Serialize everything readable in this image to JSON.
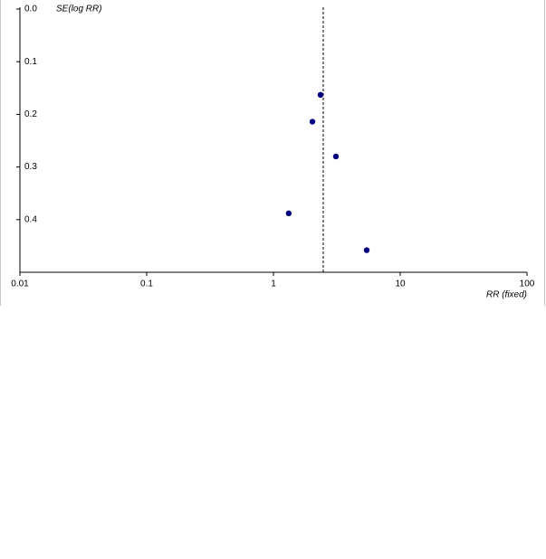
{
  "chart_data": {
    "type": "scatter",
    "x_label": "RR (fixed)",
    "y_label": "SE(log RR)",
    "x_scale": "log",
    "y_inverted": true,
    "xlim": [
      0.01,
      100
    ],
    "xticks": [
      0.01,
      0.1,
      1,
      10,
      100
    ],
    "ylim": [
      0,
      0.5
    ],
    "yticks": [
      {
        "value": 0,
        "label": "0.0"
      },
      0.1,
      0.2,
      0.3,
      0.4
    ],
    "reference_line": 2.47,
    "series": [
      {
        "color": "#000080",
        "x": [
          2.35,
          2.03,
          3.11,
          1.32,
          5.44
        ],
        "values": [
          0.163,
          0.214,
          0.28,
          0.388,
          0.458
        ]
      }
    ]
  }
}
